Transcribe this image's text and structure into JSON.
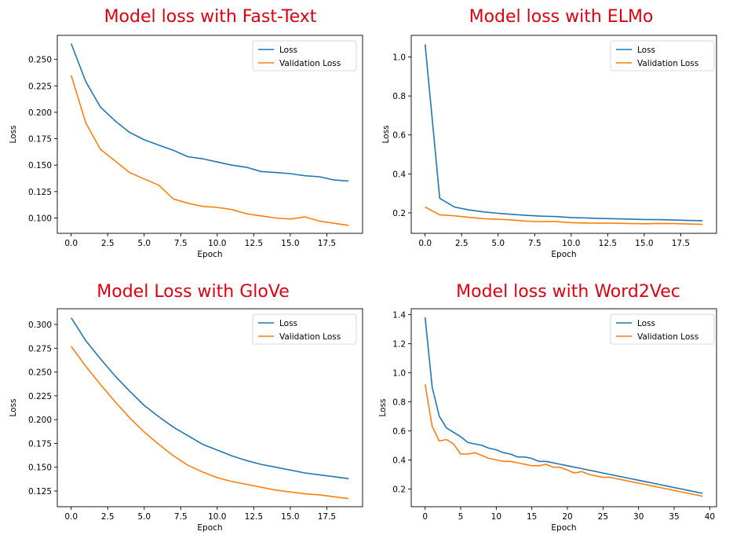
{
  "chart_data": [
    {
      "type": "line",
      "title": "Model loss with Fast-Text",
      "xlabel": "Epoch",
      "ylabel": "Loss",
      "xlim": [
        -0.95,
        19.95
      ],
      "ylim": [
        0.0855,
        0.2728
      ],
      "xticks": [
        0.0,
        2.5,
        5.0,
        7.5,
        10.0,
        12.5,
        15.0,
        17.5
      ],
      "xtick_labels": [
        "0.0",
        "2.5",
        "5.0",
        "7.5",
        "10.0",
        "12.5",
        "15.0",
        "17.5"
      ],
      "yticks": [
        0.1,
        0.125,
        0.15,
        0.175,
        0.2,
        0.225,
        0.25
      ],
      "ytick_labels": [
        "0.100",
        "0.125",
        "0.150",
        "0.175",
        "0.200",
        "0.225",
        "0.250"
      ],
      "legend_position": "upper right",
      "x": [
        0,
        1,
        2,
        3,
        4,
        5,
        6,
        7,
        8,
        9,
        10,
        11,
        12,
        13,
        14,
        15,
        16,
        17,
        18,
        19
      ],
      "series": [
        {
          "name": "Loss",
          "color": "#1f77b4",
          "values": [
            0.265,
            0.229,
            0.205,
            0.192,
            0.181,
            0.174,
            0.169,
            0.164,
            0.158,
            0.156,
            0.153,
            0.15,
            0.148,
            0.144,
            0.143,
            0.142,
            0.14,
            0.139,
            0.136,
            0.135
          ]
        },
        {
          "name": "Validation Loss",
          "color": "#ff7f0e",
          "values": [
            0.235,
            0.19,
            0.165,
            0.154,
            0.143,
            0.137,
            0.131,
            0.118,
            0.114,
            0.111,
            0.11,
            0.108,
            0.104,
            0.102,
            0.1,
            0.099,
            0.101,
            0.097,
            0.095,
            0.093
          ]
        }
      ]
    },
    {
      "type": "line",
      "title": "Model loss with ELMo",
      "xlabel": "Epoch",
      "ylabel": "Loss",
      "xlim": [
        -0.95,
        19.95
      ],
      "ylim": [
        0.095,
        1.111
      ],
      "xticks": [
        0.0,
        2.5,
        5.0,
        7.5,
        10.0,
        12.5,
        15.0,
        17.5
      ],
      "xtick_labels": [
        "0.0",
        "2.5",
        "5.0",
        "7.5",
        "10.0",
        "12.5",
        "15.0",
        "17.5"
      ],
      "yticks": [
        0.2,
        0.4,
        0.6,
        0.8,
        1.0
      ],
      "ytick_labels": [
        "0.2",
        "0.4",
        "0.6",
        "0.8",
        "1.0"
      ],
      "legend_position": "upper right",
      "x": [
        0,
        1,
        2,
        3,
        4,
        5,
        6,
        7,
        8,
        9,
        10,
        11,
        12,
        13,
        14,
        15,
        16,
        17,
        18,
        19
      ],
      "series": [
        {
          "name": "Loss",
          "color": "#1f77b4",
          "values": [
            1.065,
            0.275,
            0.23,
            0.215,
            0.205,
            0.198,
            0.192,
            0.187,
            0.183,
            0.181,
            0.176,
            0.174,
            0.171,
            0.17,
            0.168,
            0.166,
            0.165,
            0.163,
            0.161,
            0.16
          ]
        },
        {
          "name": "Validation Loss",
          "color": "#ff7f0e",
          "values": [
            0.23,
            0.19,
            0.185,
            0.177,
            0.17,
            0.167,
            0.163,
            0.157,
            0.155,
            0.155,
            0.15,
            0.148,
            0.147,
            0.147,
            0.145,
            0.144,
            0.146,
            0.145,
            0.143,
            0.141
          ]
        }
      ]
    },
    {
      "type": "line",
      "title": "Model Loss with GloVe",
      "xlabel": "Epoch",
      "ylabel": "Loss",
      "xlim": [
        -0.95,
        19.95
      ],
      "ylim": [
        0.1085,
        0.3165
      ],
      "xticks": [
        0.0,
        2.5,
        5.0,
        7.5,
        10.0,
        12.5,
        15.0,
        17.5
      ],
      "xtick_labels": [
        "0.0",
        "2.5",
        "5.0",
        "7.5",
        "10.0",
        "12.5",
        "15.0",
        "17.5"
      ],
      "yticks": [
        0.125,
        0.15,
        0.175,
        0.2,
        0.225,
        0.25,
        0.275,
        0.3
      ],
      "ytick_labels": [
        "0.125",
        "0.150",
        "0.175",
        "0.200",
        "0.225",
        "0.250",
        "0.275",
        "0.300"
      ],
      "legend_position": "upper right",
      "x": [
        0,
        1,
        2,
        3,
        4,
        5,
        6,
        7,
        8,
        9,
        10,
        11,
        12,
        13,
        14,
        15,
        16,
        17,
        18,
        19
      ],
      "series": [
        {
          "name": "Loss",
          "color": "#1f77b4",
          "values": [
            0.307,
            0.283,
            0.264,
            0.246,
            0.23,
            0.215,
            0.203,
            0.192,
            0.183,
            0.174,
            0.168,
            0.162,
            0.157,
            0.153,
            0.15,
            0.147,
            0.144,
            0.142,
            0.14,
            0.138
          ]
        },
        {
          "name": "Validation Loss",
          "color": "#ff7f0e",
          "values": [
            0.277,
            0.256,
            0.237,
            0.219,
            0.202,
            0.187,
            0.174,
            0.162,
            0.152,
            0.145,
            0.139,
            0.135,
            0.132,
            0.129,
            0.126,
            0.124,
            0.122,
            0.121,
            0.119,
            0.117
          ]
        }
      ]
    },
    {
      "type": "line",
      "title": "Model loss with Word2Vec",
      "xlabel": "Epoch",
      "ylabel": "Loss",
      "xlim": [
        -1.95,
        40.95
      ],
      "ylim": [
        0.078,
        1.44
      ],
      "xticks": [
        0,
        5,
        10,
        15,
        20,
        25,
        30,
        35,
        40
      ],
      "xtick_labels": [
        "0",
        "5",
        "10",
        "15",
        "20",
        "25",
        "30",
        "35",
        "40"
      ],
      "yticks": [
        0.2,
        0.4,
        0.6,
        0.8,
        1.0,
        1.2,
        1.4
      ],
      "ytick_labels": [
        "0.2",
        "0.4",
        "0.6",
        "0.8",
        "1.0",
        "1.2",
        "1.4"
      ],
      "legend_position": "upper right",
      "x": [
        0,
        1,
        2,
        3,
        4,
        5,
        6,
        7,
        8,
        9,
        10,
        11,
        12,
        13,
        14,
        15,
        16,
        17,
        18,
        19,
        20,
        21,
        22,
        23,
        24,
        25,
        26,
        27,
        28,
        29,
        30,
        31,
        32,
        33,
        34,
        35,
        36,
        37,
        38,
        39
      ],
      "series": [
        {
          "name": "Loss",
          "color": "#1f77b4",
          "values": [
            1.38,
            0.9,
            0.7,
            0.62,
            0.59,
            0.56,
            0.52,
            0.51,
            0.5,
            0.48,
            0.47,
            0.45,
            0.44,
            0.42,
            0.42,
            0.41,
            0.39,
            0.39,
            0.38,
            0.37,
            0.36,
            0.35,
            0.34,
            0.33,
            0.32,
            0.31,
            0.3,
            0.29,
            0.28,
            0.27,
            0.26,
            0.25,
            0.24,
            0.23,
            0.22,
            0.21,
            0.2,
            0.19,
            0.18,
            0.17
          ]
        },
        {
          "name": "Validation Loss",
          "color": "#ff7f0e",
          "values": [
            0.92,
            0.63,
            0.53,
            0.54,
            0.51,
            0.44,
            0.44,
            0.45,
            0.43,
            0.41,
            0.4,
            0.39,
            0.39,
            0.38,
            0.37,
            0.36,
            0.36,
            0.37,
            0.35,
            0.35,
            0.33,
            0.31,
            0.32,
            0.3,
            0.29,
            0.28,
            0.28,
            0.27,
            0.26,
            0.25,
            0.24,
            0.23,
            0.22,
            0.21,
            0.2,
            0.19,
            0.18,
            0.17,
            0.16,
            0.15
          ]
        }
      ]
    }
  ]
}
